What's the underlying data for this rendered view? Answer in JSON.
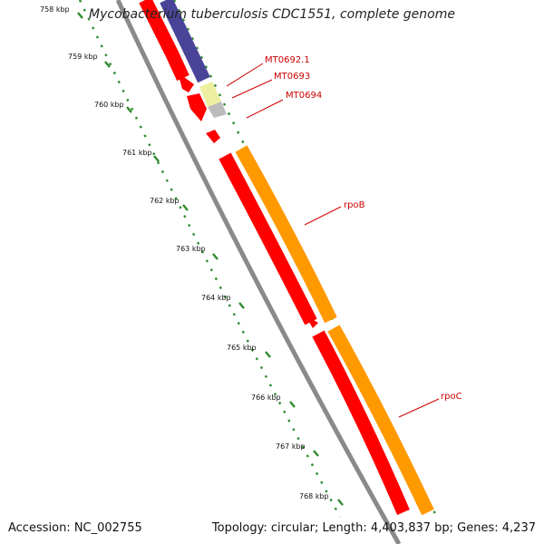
{
  "title": "Mycobacterium tuberculosis CDC1551, complete genome",
  "footer": {
    "accession": "Accession: NC_002755",
    "summary": "Topology: circular; Length: 4,403,837 bp; Genes: 4,237"
  },
  "kbp_ticks": [
    "758 kbp",
    "759 kbp",
    "760 kbp",
    "761 kbp",
    "762 kbp",
    "763 kbp",
    "764 kbp",
    "765 kbp",
    "766 kbp",
    "767 kbp",
    "768 kbp"
  ],
  "gene_labels": [
    "MT0692.1",
    "MT0693",
    "MT0694",
    "rpoB",
    "rpoC"
  ],
  "colors": {
    "backbone": "#8a8a8a",
    "cds_red": "#ff0000",
    "cds_orange": "#ff9900",
    "cds_blue": "#4a4499",
    "cds_yellow": "#eeeea0",
    "cds_gray": "#bbbbbb",
    "tick_green": "#2e8b2e",
    "label_red": "#cc0000"
  }
}
